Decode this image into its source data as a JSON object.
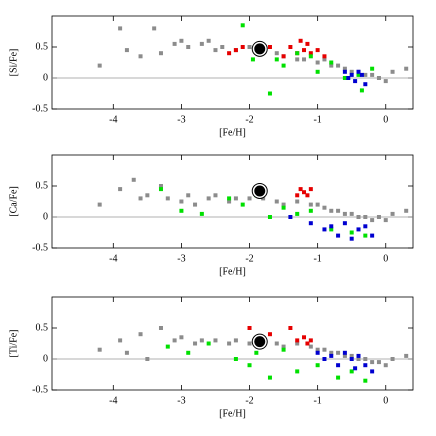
{
  "chart_data": [
    {
      "type": "scatter",
      "x_label": "[Fe/H]",
      "y_label": "[Si/Fe]",
      "xlim": [
        -4.9,
        0.4
      ],
      "ylim": [
        -0.5,
        1.0
      ],
      "xticks": [
        -4,
        -3,
        -2,
        -1,
        0
      ],
      "yticks": [
        -0.5,
        0,
        0.5
      ],
      "series": [
        {
          "color": "#8c8c8c",
          "x": [
            -4.2,
            -3.9,
            -3.8,
            -3.6,
            -3.4,
            -3.3,
            -3.1,
            -3.0,
            -2.9,
            -2.7,
            -2.6,
            -2.5,
            -2.4,
            -2.2,
            -2.0,
            -1.8,
            -1.6,
            -1.5,
            -1.3,
            -1.2,
            -1.0,
            -0.9,
            -0.8,
            -0.7,
            -0.6,
            -0.5,
            -0.4,
            -0.3,
            -0.2,
            -0.1,
            0.0,
            0.1,
            0.3
          ],
          "y": [
            0.2,
            0.8,
            0.45,
            0.35,
            0.8,
            0.4,
            0.55,
            0.6,
            0.5,
            0.55,
            0.6,
            0.45,
            0.5,
            0.45,
            0.5,
            0.45,
            0.4,
            0.35,
            0.3,
            0.3,
            0.25,
            0.3,
            0.2,
            0.2,
            0.15,
            0.1,
            0.1,
            0.05,
            0.05,
            0.0,
            -0.05,
            0.1,
            0.15
          ]
        },
        {
          "color": "#e60000",
          "x": [
            -2.3,
            -2.2,
            -2.1,
            -1.9,
            -1.7,
            -1.5,
            -1.4,
            -1.3,
            -1.25,
            -1.2,
            -1.15,
            -1.1,
            -1.0,
            -0.9
          ],
          "y": [
            0.4,
            0.45,
            0.5,
            0.45,
            0.5,
            0.35,
            0.5,
            0.4,
            0.6,
            0.45,
            0.55,
            0.4,
            0.45,
            0.35
          ]
        },
        {
          "color": "#00e000",
          "x": [
            -2.1,
            -1.95,
            -1.7,
            -1.6,
            -1.5,
            -1.3,
            -1.1,
            -1.0,
            -0.8,
            -0.6,
            -0.4,
            -0.35,
            -0.2
          ],
          "y": [
            0.85,
            0.3,
            -0.25,
            0.3,
            0.2,
            0.4,
            0.35,
            0.1,
            0.25,
            0.0,
            0.05,
            -0.2,
            0.15
          ]
        },
        {
          "color": "#0000d0",
          "x": [
            -0.6,
            -0.55,
            -0.5,
            -0.45,
            -0.4,
            -0.35,
            -0.3
          ],
          "y": [
            0.1,
            0.0,
            0.05,
            -0.05,
            0.1,
            0.05,
            -0.1
          ]
        },
        {
          "color": "#000000",
          "marker": "circle",
          "x": [
            -1.85
          ],
          "y": [
            0.47
          ]
        }
      ]
    },
    {
      "type": "scatter",
      "x_label": "[Fe/H]",
      "y_label": "[Ca/Fe]",
      "xlim": [
        -4.9,
        0.4
      ],
      "ylim": [
        -0.5,
        1.0
      ],
      "xticks": [
        -4,
        -3,
        -2,
        -1,
        0
      ],
      "yticks": [
        -0.5,
        0,
        0.5
      ],
      "series": [
        {
          "color": "#8c8c8c",
          "x": [
            -4.2,
            -3.9,
            -3.7,
            -3.6,
            -3.5,
            -3.3,
            -3.2,
            -3.0,
            -2.9,
            -2.8,
            -2.6,
            -2.5,
            -2.3,
            -2.2,
            -2.0,
            -1.8,
            -1.6,
            -1.5,
            -1.3,
            -1.1,
            -1.0,
            -0.9,
            -0.8,
            -0.7,
            -0.6,
            -0.5,
            -0.4,
            -0.3,
            -0.2,
            -0.1,
            0.0,
            0.1,
            0.3
          ],
          "y": [
            0.2,
            0.45,
            0.6,
            0.3,
            0.35,
            0.5,
            0.3,
            0.25,
            0.35,
            0.2,
            0.3,
            0.35,
            0.25,
            0.3,
            0.3,
            0.3,
            0.25,
            0.2,
            0.25,
            0.2,
            0.2,
            0.15,
            0.1,
            0.1,
            0.05,
            0.05,
            0.0,
            0.0,
            -0.05,
            0.0,
            -0.05,
            0.05,
            0.1
          ]
        },
        {
          "color": "#e60000",
          "x": [
            -1.3,
            -1.25,
            -1.2,
            -1.15,
            -1.1
          ],
          "y": [
            0.35,
            0.45,
            0.4,
            0.35,
            0.45
          ]
        },
        {
          "color": "#00e000",
          "x": [
            -3.3,
            -3.0,
            -2.7,
            -2.3,
            -2.1,
            -1.9,
            -1.7,
            -1.5,
            -1.3,
            -1.1,
            -0.8,
            -0.5,
            -0.3
          ],
          "y": [
            0.45,
            0.1,
            0.05,
            0.3,
            0.2,
            0.35,
            0.0,
            0.15,
            0.05,
            0.1,
            -0.2,
            -0.25,
            -0.3
          ]
        },
        {
          "color": "#0000d0",
          "x": [
            -1.4,
            -1.1,
            -0.9,
            -0.8,
            -0.7,
            -0.6,
            -0.5,
            -0.4,
            -0.3,
            -0.2
          ],
          "y": [
            0.0,
            -0.1,
            -0.2,
            -0.15,
            -0.3,
            -0.1,
            -0.35,
            -0.2,
            -0.15,
            -0.3
          ]
        },
        {
          "color": "#000000",
          "marker": "circle",
          "x": [
            -1.85
          ],
          "y": [
            0.42
          ]
        }
      ]
    },
    {
      "type": "scatter",
      "x_label": "[Fe/H]",
      "y_label": "[Ti/Fe]",
      "xlim": [
        -4.9,
        0.4
      ],
      "ylim": [
        -0.5,
        1.0
      ],
      "xticks": [
        -4,
        -3,
        -2,
        -1,
        0
      ],
      "yticks": [
        -0.5,
        0,
        0.5
      ],
      "series": [
        {
          "color": "#8c8c8c",
          "x": [
            -4.2,
            -3.9,
            -3.8,
            -3.6,
            -3.5,
            -3.3,
            -3.1,
            -3.0,
            -2.8,
            -2.7,
            -2.5,
            -2.3,
            -2.2,
            -2.0,
            -1.8,
            -1.6,
            -1.5,
            -1.3,
            -1.1,
            -1.0,
            -0.9,
            -0.8,
            -0.7,
            -0.6,
            -0.5,
            -0.4,
            -0.3,
            -0.2,
            -0.1,
            0.0,
            0.1,
            0.3
          ],
          "y": [
            0.15,
            0.3,
            0.1,
            0.4,
            0.0,
            0.5,
            0.3,
            0.35,
            0.25,
            0.3,
            0.3,
            0.25,
            0.3,
            0.25,
            0.3,
            0.25,
            0.2,
            0.25,
            0.2,
            0.15,
            0.15,
            0.1,
            0.1,
            0.05,
            0.05,
            0.0,
            0.0,
            -0.05,
            -0.05,
            -0.1,
            0.0,
            0.05
          ]
        },
        {
          "color": "#e60000",
          "x": [
            -2.0,
            -1.7,
            -1.4,
            -1.3,
            -1.2,
            -1.15,
            -1.1
          ],
          "y": [
            0.5,
            0.4,
            0.5,
            0.3,
            0.35,
            0.25,
            0.3
          ]
        },
        {
          "color": "#00e000",
          "x": [
            -3.2,
            -2.9,
            -2.6,
            -2.2,
            -2.0,
            -1.9,
            -1.7,
            -1.5,
            -1.3,
            -1.0,
            -0.7,
            -0.5,
            -0.3
          ],
          "y": [
            0.2,
            0.1,
            0.25,
            0.0,
            -0.1,
            0.1,
            -0.3,
            0.15,
            -0.2,
            -0.1,
            -0.3,
            -0.2,
            -0.35
          ]
        },
        {
          "color": "#0000d0",
          "x": [
            -1.0,
            -0.9,
            -0.8,
            -0.7,
            -0.6,
            -0.5,
            -0.45,
            -0.4,
            -0.3,
            -0.2
          ],
          "y": [
            0.1,
            0.0,
            0.05,
            -0.1,
            0.1,
            0.0,
            -0.15,
            0.05,
            -0.1,
            -0.2
          ]
        },
        {
          "color": "#000000",
          "marker": "circle",
          "x": [
            -1.85
          ],
          "y": [
            0.28
          ]
        }
      ]
    }
  ]
}
